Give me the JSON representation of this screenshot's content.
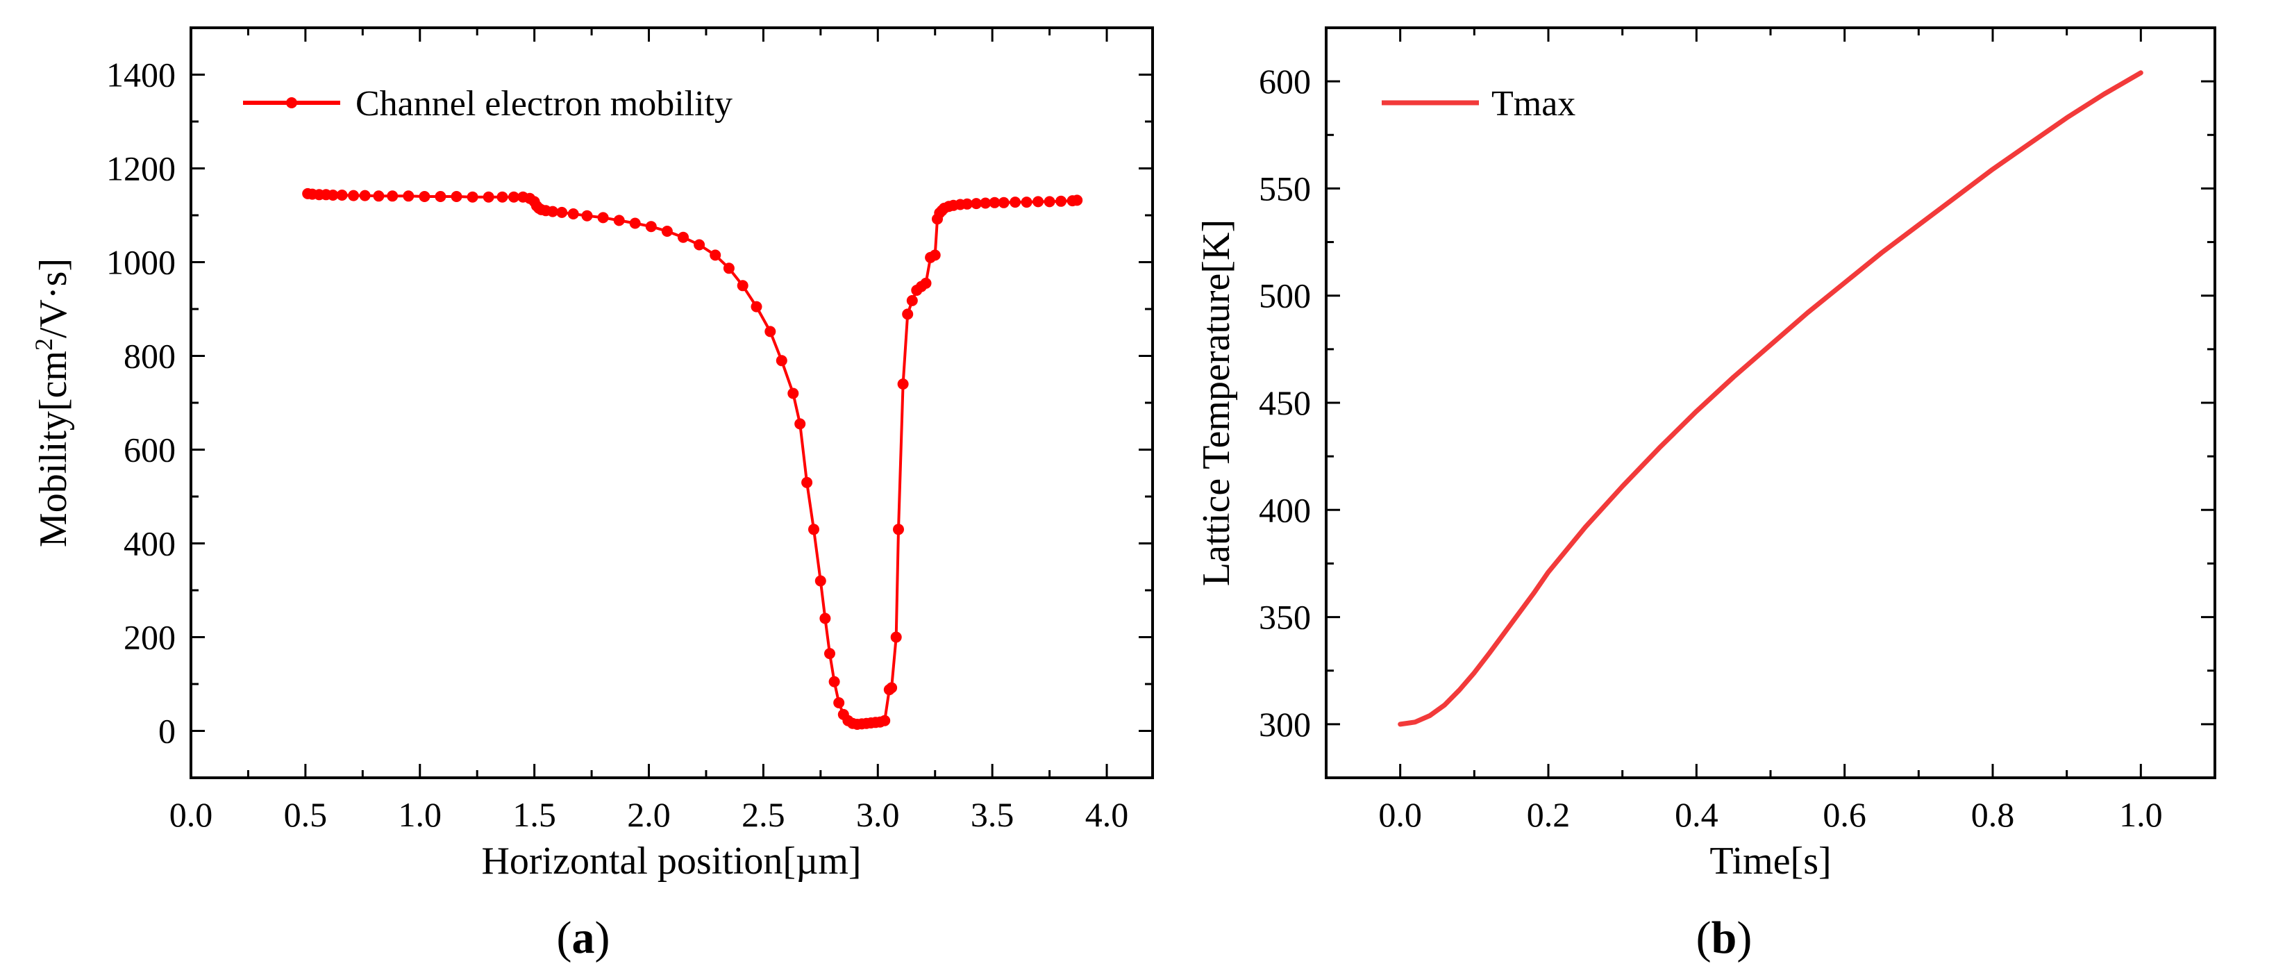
{
  "figure": {
    "panel_a_label": "a",
    "panel_b_label": "b",
    "colors": {
      "series_a": "#ff0000",
      "series_b": "#f23a3a",
      "axis": "#000000"
    }
  },
  "chart_data": [
    {
      "id": "a",
      "type": "line",
      "markers": true,
      "title": "",
      "xlabel": "Horizontal position[µm]",
      "ylabel_main": "Mobility[cm",
      "ylabel_sup": "2",
      "ylabel_tail": "/V·s]",
      "xlim": [
        0.0,
        4.2
      ],
      "ylim": [
        -100,
        1500
      ],
      "xticks": [
        0.0,
        0.5,
        1.0,
        1.5,
        2.0,
        2.5,
        3.0,
        3.5,
        4.0
      ],
      "xtick_labels": [
        "0.0",
        "0.5",
        "1.0",
        "1.5",
        "2.0",
        "2.5",
        "3.0",
        "3.5",
        "4.0"
      ],
      "yticks": [
        0,
        200,
        400,
        600,
        800,
        1000,
        1200,
        1400
      ],
      "ytick_labels": [
        "0",
        "200",
        "400",
        "600",
        "800",
        "1000",
        "1200",
        "1400"
      ],
      "legend": "top-left",
      "series": [
        {
          "name": "Channel electron mobility",
          "x": [
            0.51,
            0.53,
            0.56,
            0.59,
            0.62,
            0.66,
            0.71,
            0.76,
            0.82,
            0.88,
            0.95,
            1.02,
            1.09,
            1.16,
            1.23,
            1.3,
            1.36,
            1.41,
            1.45,
            1.48,
            1.5,
            1.51,
            1.52,
            1.53,
            1.55,
            1.58,
            1.62,
            1.67,
            1.73,
            1.8,
            1.87,
            1.94,
            2.01,
            2.08,
            2.15,
            2.22,
            2.29,
            2.35,
            2.41,
            2.47,
            2.53,
            2.58,
            2.63,
            2.66,
            2.69,
            2.72,
            2.75,
            2.77,
            2.79,
            2.81,
            2.83,
            2.85,
            2.87,
            2.89,
            2.91,
            2.93,
            2.95,
            2.97,
            2.99,
            3.01,
            3.03,
            3.05,
            3.06,
            3.08,
            3.09,
            3.11,
            3.13,
            3.15,
            3.17,
            3.19,
            3.21,
            3.23,
            3.25,
            3.26,
            3.27,
            3.28,
            3.29,
            3.31,
            3.33,
            3.36,
            3.39,
            3.43,
            3.47,
            3.51,
            3.55,
            3.6,
            3.65,
            3.7,
            3.75,
            3.8,
            3.85,
            3.87
          ],
          "y": [
            1146,
            1145,
            1144,
            1144,
            1143,
            1143,
            1142,
            1142,
            1141,
            1141,
            1141,
            1140,
            1140,
            1140,
            1139,
            1139,
            1139,
            1139,
            1139,
            1136,
            1129,
            1120,
            1115,
            1112,
            1110,
            1108,
            1106,
            1103,
            1099,
            1095,
            1089,
            1083,
            1076,
            1066,
            1053,
            1037,
            1015,
            987,
            950,
            905,
            852,
            790,
            720,
            655,
            530,
            430,
            320,
            240,
            165,
            105,
            60,
            35,
            22,
            16,
            14,
            15,
            16,
            17,
            18,
            19,
            22,
            88,
            92,
            200,
            430,
            740,
            889,
            918,
            940,
            948,
            955,
            1010,
            1015,
            1092,
            1105,
            1110,
            1115,
            1119,
            1121,
            1123,
            1124,
            1125,
            1126,
            1127,
            1127,
            1128,
            1128,
            1129,
            1129,
            1130,
            1131,
            1132
          ]
        }
      ]
    },
    {
      "id": "b",
      "type": "line",
      "markers": false,
      "title": "",
      "xlabel": "Time[s]",
      "ylabel": "Lattice Temperature[K]",
      "xlim": [
        -0.1,
        1.1
      ],
      "ylim": [
        275,
        625
      ],
      "xticks": [
        0.0,
        0.2,
        0.4,
        0.6,
        0.8,
        1.0
      ],
      "xtick_labels": [
        "0.0",
        "0.2",
        "0.4",
        "0.6",
        "0.8",
        "1.0"
      ],
      "yticks": [
        300,
        350,
        400,
        450,
        500,
        550,
        600
      ],
      "ytick_labels": [
        "300",
        "350",
        "400",
        "450",
        "500",
        "550",
        "600"
      ],
      "legend": "top-left",
      "series": [
        {
          "name": "Tmax",
          "x": [
            0.0,
            0.02,
            0.04,
            0.06,
            0.08,
            0.1,
            0.12,
            0.15,
            0.18,
            0.2,
            0.25,
            0.3,
            0.35,
            0.4,
            0.45,
            0.5,
            0.55,
            0.6,
            0.65,
            0.7,
            0.75,
            0.8,
            0.85,
            0.9,
            0.95,
            1.0
          ],
          "y": [
            300,
            301,
            304,
            309,
            316,
            324,
            333,
            347,
            361,
            371,
            392,
            411,
            429,
            446,
            462,
            477,
            492,
            506,
            520,
            533,
            546,
            559,
            571,
            583,
            594,
            604
          ]
        }
      ]
    }
  ]
}
